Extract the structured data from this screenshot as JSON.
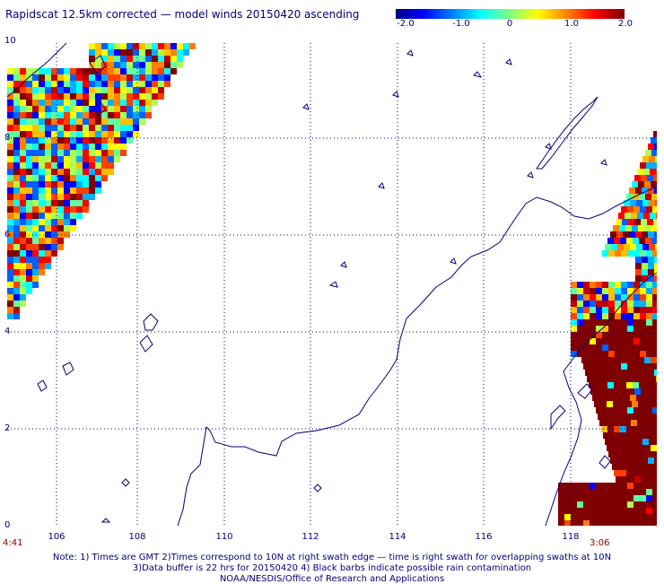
{
  "header": {
    "title": "Rapidscat 12.5km corrected — model winds 20150420 ascending"
  },
  "colorbar": {
    "ticks": [
      "-2.0",
      "-1.0",
      "0",
      "1.0",
      "2.0"
    ],
    "range": [
      -2.0,
      2.0
    ]
  },
  "axes": {
    "lat_labels": [
      "10",
      "8",
      "6",
      "4",
      "2",
      "0"
    ],
    "lon_labels": [
      "106",
      "108",
      "110",
      "112",
      "114",
      "116",
      "118"
    ],
    "lat_range": [
      0,
      10
    ],
    "lon_range": [
      104.8,
      119.6
    ]
  },
  "swaths": {
    "left_time": "4:41",
    "right_time": "3:06"
  },
  "footer": {
    "note_line1": "Note: 1) Times are GMT 2)Times correspond to 10N at right swath edge — time is right swath for overlapping swaths at 10N",
    "note_line2": "3)Data buffer is 22 hrs for 20150420 4) Black barbs indicate possible rain contamination",
    "note_line3": "NOAA/NESDIS/Office of Research and Applications"
  },
  "colors": {
    "text": "#00007a",
    "coast": "#00007a",
    "grid": "#00007a",
    "time": "#8b0000"
  }
}
